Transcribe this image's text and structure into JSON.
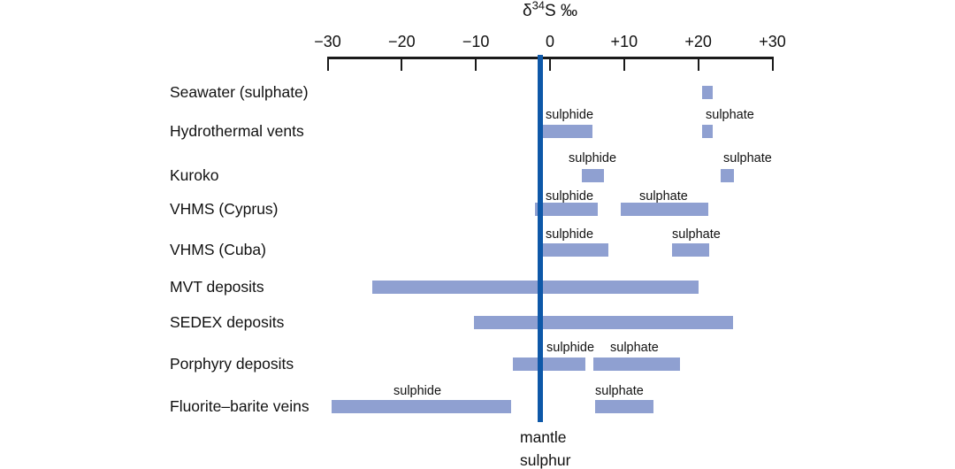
{
  "figure": {
    "title": {
      "delta": "δ",
      "isotope": "34",
      "element_unit": "S ‰"
    },
    "mantle_label": {
      "line1": "mantle",
      "line2": "sulphur"
    }
  },
  "colors": {
    "bar": "#8FA0D1",
    "mantle_line": "#0E58A8",
    "axis": "#1A1A1A",
    "text": "#111111"
  },
  "chart_data": {
    "type": "bar",
    "orientation": "horizontal-range",
    "title": "δ34S ‰",
    "xlabel": "δ34S ‰",
    "ylabel": "",
    "xlim": [
      -30,
      30
    ],
    "grid": false,
    "x_ticks": {
      "values": [
        -30,
        -20,
        -10,
        0,
        10,
        20,
        30
      ],
      "labels": [
        "−30",
        "−20",
        "−10",
        "0",
        "+10",
        "+20",
        "+30"
      ]
    },
    "mantle_line_value": -1.3,
    "rows": [
      {
        "label": "Seawater (sulphate)",
        "bars": [
          {
            "annotation": "",
            "min": 20.5,
            "max": 22
          }
        ]
      },
      {
        "label": "Hydrothermal vents",
        "bars": [
          {
            "annotation": "sulphide",
            "min": -1,
            "max": 5.7
          },
          {
            "annotation": "sulphate",
            "min": 20.5,
            "max": 22
          }
        ]
      },
      {
        "label": "Kuroko",
        "bars": [
          {
            "annotation": "sulphide",
            "min": 4.3,
            "max": 7.3
          },
          {
            "annotation": "sulphate",
            "min": 23,
            "max": 24.8
          }
        ]
      },
      {
        "label": "VHMS (Cyprus)",
        "bars": [
          {
            "annotation": "sulphide",
            "min": -2,
            "max": 6.5
          },
          {
            "annotation": "sulphate",
            "min": 9.6,
            "max": 21.4
          }
        ]
      },
      {
        "label": "VHMS (Cuba)",
        "bars": [
          {
            "annotation": "sulphide",
            "min": -1,
            "max": 7.9
          },
          {
            "annotation": "sulphate",
            "min": 16.5,
            "max": 21.5
          }
        ]
      },
      {
        "label": "MVT deposits",
        "bars": [
          {
            "annotation": "",
            "min": -24,
            "max": 20
          }
        ]
      },
      {
        "label": "SEDEX deposits",
        "bars": [
          {
            "annotation": "",
            "min": -10.2,
            "max": 24.7
          }
        ]
      },
      {
        "label": "Porphyry deposits",
        "bars": [
          {
            "annotation": "sulphide",
            "min": -5,
            "max": 4.8
          },
          {
            "annotation": "sulphate",
            "min": 5.9,
            "max": 17.5
          }
        ]
      },
      {
        "label": "Fluorite–barite veins",
        "bars": [
          {
            "annotation": "sulphide",
            "min": -29.5,
            "max": -5.2
          },
          {
            "annotation": "sulphate",
            "min": 6.1,
            "max": 14
          }
        ]
      }
    ]
  }
}
